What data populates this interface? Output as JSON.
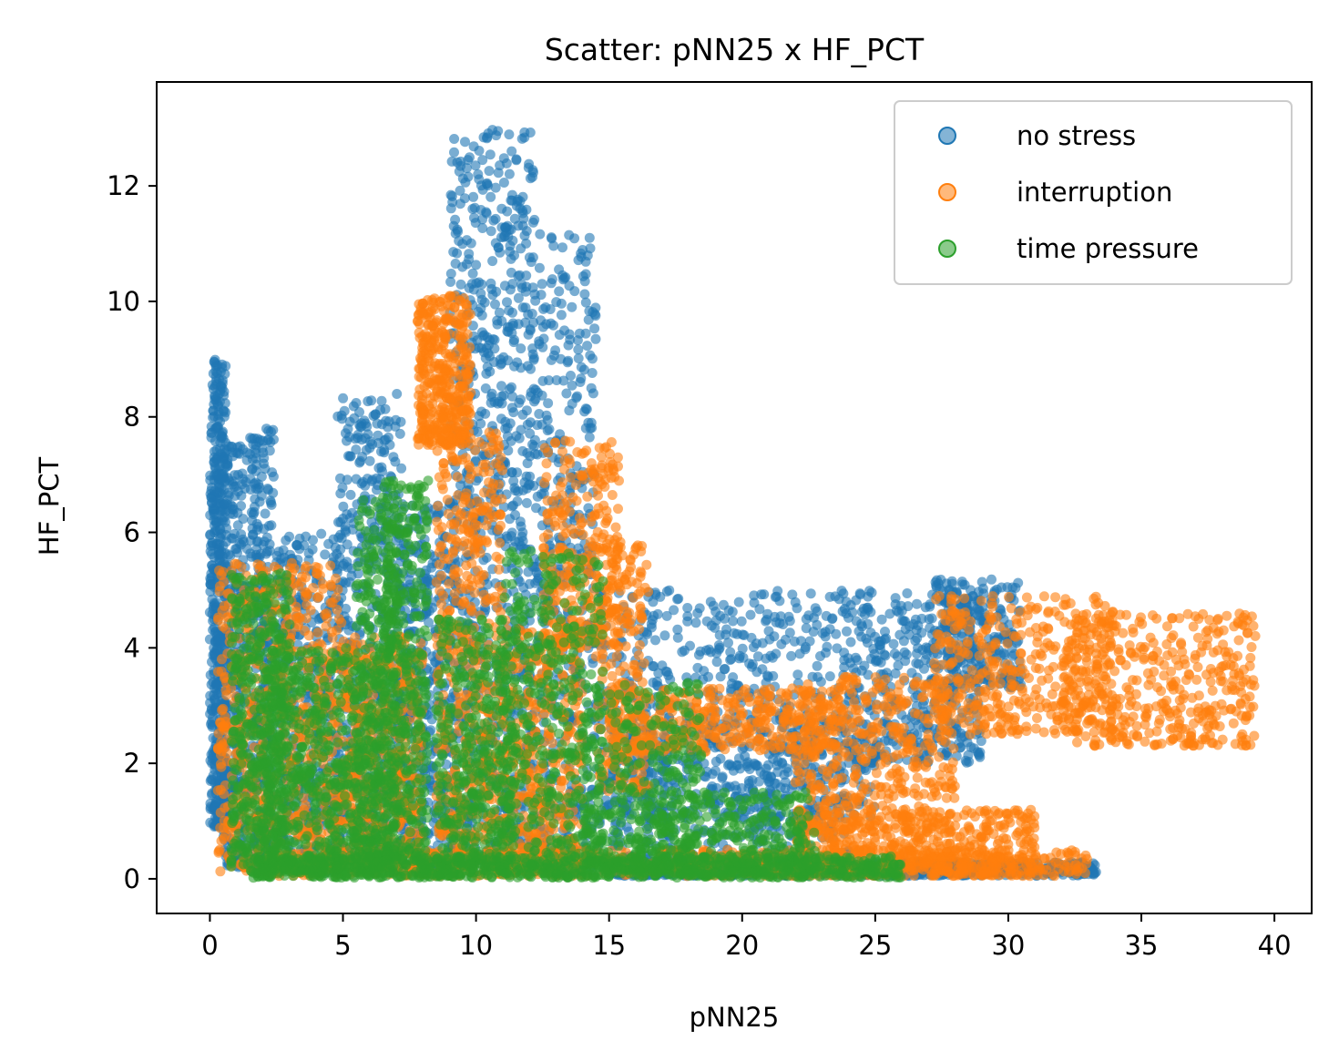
{
  "chart_data": {
    "type": "scatter",
    "title": "Scatter: pNN25 x HF_PCT",
    "xlabel": "pNN25",
    "ylabel": "HF_PCT",
    "xlim": [
      -2,
      41.4
    ],
    "ylim": [
      -0.6,
      13.8
    ],
    "xticks": [
      0,
      5,
      10,
      15,
      20,
      25,
      30,
      35,
      40
    ],
    "yticks": [
      0,
      2,
      4,
      6,
      8,
      10,
      12
    ],
    "grid": false,
    "legend_position": "top-right",
    "series": [
      {
        "name": "no stress",
        "color": "#1f77b4",
        "clusters": [
          {
            "x": [
              0.0,
              0.6
            ],
            "y": [
              0.9,
              9.0
            ],
            "n": 500
          },
          {
            "x": [
              0.5,
              1.4
            ],
            "y": [
              0.2,
              7.5
            ],
            "n": 300
          },
          {
            "x": [
              1.5,
              2.4
            ],
            "y": [
              0.1,
              7.9
            ],
            "n": 300
          },
          {
            "x": [
              2.5,
              5.0
            ],
            "y": [
              0.1,
              6.0
            ],
            "n": 450
          },
          {
            "x": [
              4.8,
              7.2
            ],
            "y": [
              0.2,
              8.4
            ],
            "n": 500
          },
          {
            "x": [
              7.0,
              9.0
            ],
            "y": [
              0.1,
              6.5
            ],
            "n": 400
          },
          {
            "x": [
              9.0,
              12.2
            ],
            "y": [
              0.2,
              13.0
            ],
            "n": 900
          },
          {
            "x": [
              12.2,
              14.5
            ],
            "y": [
              0.1,
              11.2
            ],
            "n": 450
          },
          {
            "x": [
              14.5,
              24.0
            ],
            "y": [
              0.1,
              5.0
            ],
            "n": 800
          },
          {
            "x": [
              24.0,
              29.0
            ],
            "y": [
              2.0,
              5.0
            ],
            "n": 400
          },
          {
            "x": [
              27.0,
              30.5
            ],
            "y": [
              3.3,
              5.2
            ],
            "n": 250
          },
          {
            "x": [
              15.0,
              33.3
            ],
            "y": [
              0.05,
              0.3
            ],
            "n": 700
          },
          {
            "x": [
              15.0,
              25.0
            ],
            "y": [
              1.0,
              2.7
            ],
            "n": 300
          }
        ]
      },
      {
        "name": "interruption",
        "color": "#ff7f0e",
        "clusters": [
          {
            "x": [
              0.3,
              5.0
            ],
            "y": [
              0.1,
              5.5
            ],
            "n": 700
          },
          {
            "x": [
              5.0,
              8.0
            ],
            "y": [
              0.1,
              4.2
            ],
            "n": 500
          },
          {
            "x": [
              7.8,
              9.8
            ],
            "y": [
              7.5,
              10.1
            ],
            "n": 400
          },
          {
            "x": [
              8.5,
              11.0
            ],
            "y": [
              0.2,
              7.8
            ],
            "n": 500
          },
          {
            "x": [
              11.0,
              14.0
            ],
            "y": [
              0.1,
              4.5
            ],
            "n": 400
          },
          {
            "x": [
              12.5,
              15.5
            ],
            "y": [
              4.0,
              7.6
            ],
            "n": 300
          },
          {
            "x": [
              14.5,
              16.5
            ],
            "y": [
              1.5,
              5.8
            ],
            "n": 200
          },
          {
            "x": [
              15.0,
              24.0
            ],
            "y": [
              2.2,
              3.3
            ],
            "n": 400
          },
          {
            "x": [
              22.0,
              28.0
            ],
            "y": [
              0.8,
              3.5
            ],
            "n": 400
          },
          {
            "x": [
              22.0,
              31.0
            ],
            "y": [
              0.05,
              1.2
            ],
            "n": 500
          },
          {
            "x": [
              27.2,
              34.0
            ],
            "y": [
              2.5,
              4.9
            ],
            "n": 400
          },
          {
            "x": [
              32.0,
              39.3
            ],
            "y": [
              2.3,
              4.6
            ],
            "n": 400
          },
          {
            "x": [
              2.0,
              33.0
            ],
            "y": [
              0.05,
              0.5
            ],
            "n": 800
          }
        ]
      },
      {
        "name": "time pressure",
        "color": "#2ca02c",
        "clusters": [
          {
            "x": [
              0.8,
              3.0
            ],
            "y": [
              0.2,
              5.3
            ],
            "n": 500
          },
          {
            "x": [
              2.0,
              6.5
            ],
            "y": [
              0.05,
              4.0
            ],
            "n": 600
          },
          {
            "x": [
              5.5,
              7.0
            ],
            "y": [
              0.2,
              6.6
            ],
            "n": 300
          },
          {
            "x": [
              6.5,
              8.2
            ],
            "y": [
              0.3,
              6.9
            ],
            "n": 400
          },
          {
            "x": [
              8.5,
              11.5
            ],
            "y": [
              0.2,
              4.5
            ],
            "n": 400
          },
          {
            "x": [
              11.0,
              14.8
            ],
            "y": [
              0.2,
              5.7
            ],
            "n": 400
          },
          {
            "x": [
              14.0,
              18.5
            ],
            "y": [
              0.1,
              3.4
            ],
            "n": 300
          },
          {
            "x": [
              16.0,
              22.8
            ],
            "y": [
              0.05,
              1.5
            ],
            "n": 300
          },
          {
            "x": [
              1.5,
              26.0
            ],
            "y": [
              0.02,
              0.4
            ],
            "n": 900
          }
        ]
      }
    ]
  }
}
